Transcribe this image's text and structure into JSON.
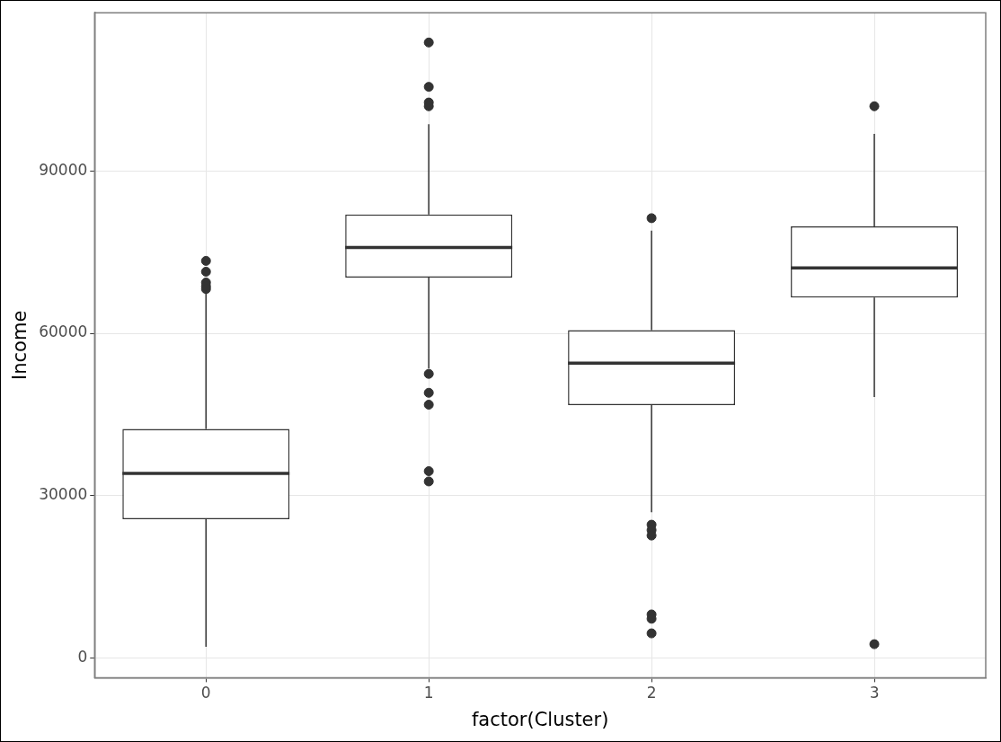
{
  "chart_data": {
    "type": "box",
    "xlabel": "factor(Cluster)",
    "ylabel": "Income",
    "categories": [
      "0",
      "1",
      "2",
      "3"
    ],
    "color": "#333333",
    "boxes": [
      {
        "low": 2000,
        "q1": 25600,
        "median": 34100,
        "q3": 42300,
        "high": 68000,
        "outliers": [
          73400,
          71400,
          69400,
          68700,
          68200
        ]
      },
      {
        "low": 53500,
        "q1": 70300,
        "median": 75900,
        "q3": 82000,
        "high": 98700,
        "outliers": [
          113800,
          105600,
          102700,
          102000,
          52500,
          49000,
          46800,
          34500,
          32600
        ]
      },
      {
        "low": 26900,
        "q1": 46700,
        "median": 54500,
        "q3": 60600,
        "high": 79000,
        "outliers": [
          81300,
          24600,
          23600,
          22600,
          8000,
          7200,
          4500
        ]
      },
      {
        "low": 48200,
        "q1": 66600,
        "median": 72100,
        "q3": 79800,
        "high": 96900,
        "outliers": [
          102000,
          2500
        ]
      }
    ],
    "ylim": [
      -3700,
      119300
    ],
    "yticks": [
      0,
      30000,
      60000,
      90000
    ],
    "grid": true
  }
}
